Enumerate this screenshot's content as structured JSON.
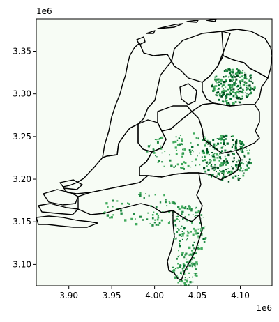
{
  "chart_data": {
    "type": "heatmap",
    "title": "",
    "xlabel": "",
    "ylabel": "",
    "x_offset_label": "1e6",
    "y_offset_label": "1e6",
    "xlim": [
      3.862,
      4.137
    ],
    "ylim": [
      3.075,
      3.388
    ],
    "xticks": [
      {
        "value": 3.9,
        "label": "3.90"
      },
      {
        "value": 3.95,
        "label": "3.95"
      },
      {
        "value": 4.0,
        "label": "4.00"
      },
      {
        "value": 4.05,
        "label": "4.05"
      },
      {
        "value": 4.1,
        "label": "4.10"
      }
    ],
    "yticks": [
      {
        "value": 3.1,
        "label": "3.10"
      },
      {
        "value": 3.15,
        "label": "3.15"
      },
      {
        "value": 3.2,
        "label": "3.20"
      },
      {
        "value": 3.25,
        "label": "3.25"
      },
      {
        "value": 3.3,
        "label": "3.30"
      },
      {
        "value": 3.35,
        "label": "3.35"
      }
    ],
    "colormap": "Greens",
    "background_color": "#f7fcf5",
    "high_color": "#00441b",
    "mid_color": "#41ab5d",
    "boundary_color": "#000000",
    "grid": false,
    "legend": "none",
    "hotspot_regions": [
      {
        "x": 4.091,
        "y": 3.31,
        "rx": 0.025,
        "ry": 0.022,
        "density": 0.95
      },
      {
        "x": 4.083,
        "y": 3.225,
        "rx": 0.03,
        "ry": 0.028,
        "density": 0.95
      },
      {
        "x": 4.03,
        "y": 3.235,
        "rx": 0.04,
        "ry": 0.022,
        "density": 0.35
      },
      {
        "x": 3.985,
        "y": 3.165,
        "rx": 0.05,
        "ry": 0.02,
        "density": 0.3
      },
      {
        "x": 4.04,
        "y": 3.14,
        "rx": 0.02,
        "ry": 0.03,
        "density": 0.4
      },
      {
        "x": 4.035,
        "y": 3.095,
        "rx": 0.015,
        "ry": 0.02,
        "density": 0.35
      }
    ]
  }
}
